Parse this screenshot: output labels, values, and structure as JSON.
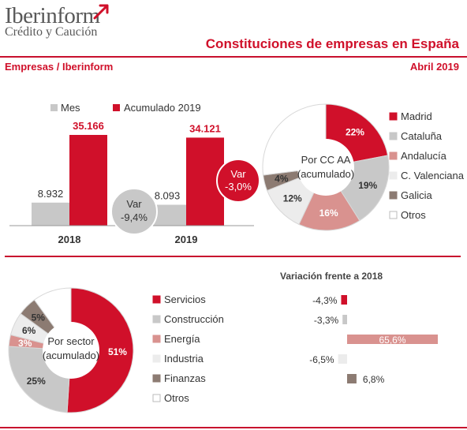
{
  "header": {
    "logo_name": "Iberinform",
    "logo_sub": "Crédito y Caución",
    "title": "Constituciones de empresas en España",
    "left_label": "Empresas / Iberinform",
    "right_label": "Abril 2019"
  },
  "colors": {
    "red": "#d0102a",
    "gray": "#c8c8c8",
    "pink": "#d9928f",
    "light": "#ececec",
    "brown": "#8c7b72",
    "white": "#ffffff"
  },
  "chart_data": [
    {
      "type": "bar",
      "categories": [
        "2018",
        "2019"
      ],
      "series": [
        {
          "name": "Mes",
          "values": [
            8932,
            8093
          ]
        },
        {
          "name": "Acumulado 2019",
          "values": [
            35166,
            34121
          ]
        }
      ],
      "value_labels": {
        "Mes": [
          "8.932",
          "8.093"
        ],
        "Acumulado 2019": [
          "35.166",
          "34.121"
        ]
      },
      "annotations": [
        {
          "series": "Mes",
          "label": "Var",
          "value": "-9,4%"
        },
        {
          "series": "Acumulado 2019",
          "label": "Var",
          "value": "-3,0%"
        }
      ],
      "legend_position": "top"
    },
    {
      "type": "pie",
      "center_label": [
        "Por CC AA",
        "(acumulado)"
      ],
      "slices": [
        {
          "name": "Madrid",
          "value": 22,
          "label": "22%",
          "color": "#d0102a"
        },
        {
          "name": "Cataluña",
          "value": 19,
          "label": "19%",
          "color": "#c8c8c8"
        },
        {
          "name": "Andalucía",
          "value": 16,
          "label": "16%",
          "color": "#d9928f"
        },
        {
          "name": "C. Valenciana",
          "value": 12,
          "label": "12%",
          "color": "#ececec"
        },
        {
          "name": "Galicia",
          "value": 4,
          "label": "4%",
          "color": "#8c7b72"
        },
        {
          "name": "Otros",
          "value": 27,
          "label": "",
          "color": "#ffffff"
        }
      ],
      "legend_position": "right"
    },
    {
      "type": "pie",
      "center_label": [
        "Por sector",
        "(acumulado)"
      ],
      "slices": [
        {
          "name": "Servicios",
          "value": 51,
          "label": "51%",
          "color": "#d0102a"
        },
        {
          "name": "Construcción",
          "value": 25,
          "label": "25%",
          "color": "#c8c8c8"
        },
        {
          "name": "Energía",
          "value": 3,
          "label": "3%",
          "color": "#d9928f"
        },
        {
          "name": "Industria",
          "value": 6,
          "label": "6%",
          "color": "#ececec"
        },
        {
          "name": "Finanzas",
          "value": 5,
          "label": "5%",
          "color": "#8c7b72"
        },
        {
          "name": "Otros",
          "value": 10,
          "label": "",
          "color": "#ffffff"
        }
      ],
      "legend_position": "right"
    },
    {
      "type": "bar",
      "orientation": "horizontal",
      "title": "Variación frente a 2018",
      "categories": [
        "Servicios",
        "Construcción",
        "Energía",
        "Industria",
        "Finanzas"
      ],
      "values": [
        -4.3,
        -3.3,
        65.6,
        -6.5,
        6.8
      ],
      "value_labels": [
        "-4,3%",
        "-3,3%",
        "65,6%",
        "-6,5%",
        "6,8%"
      ]
    }
  ]
}
